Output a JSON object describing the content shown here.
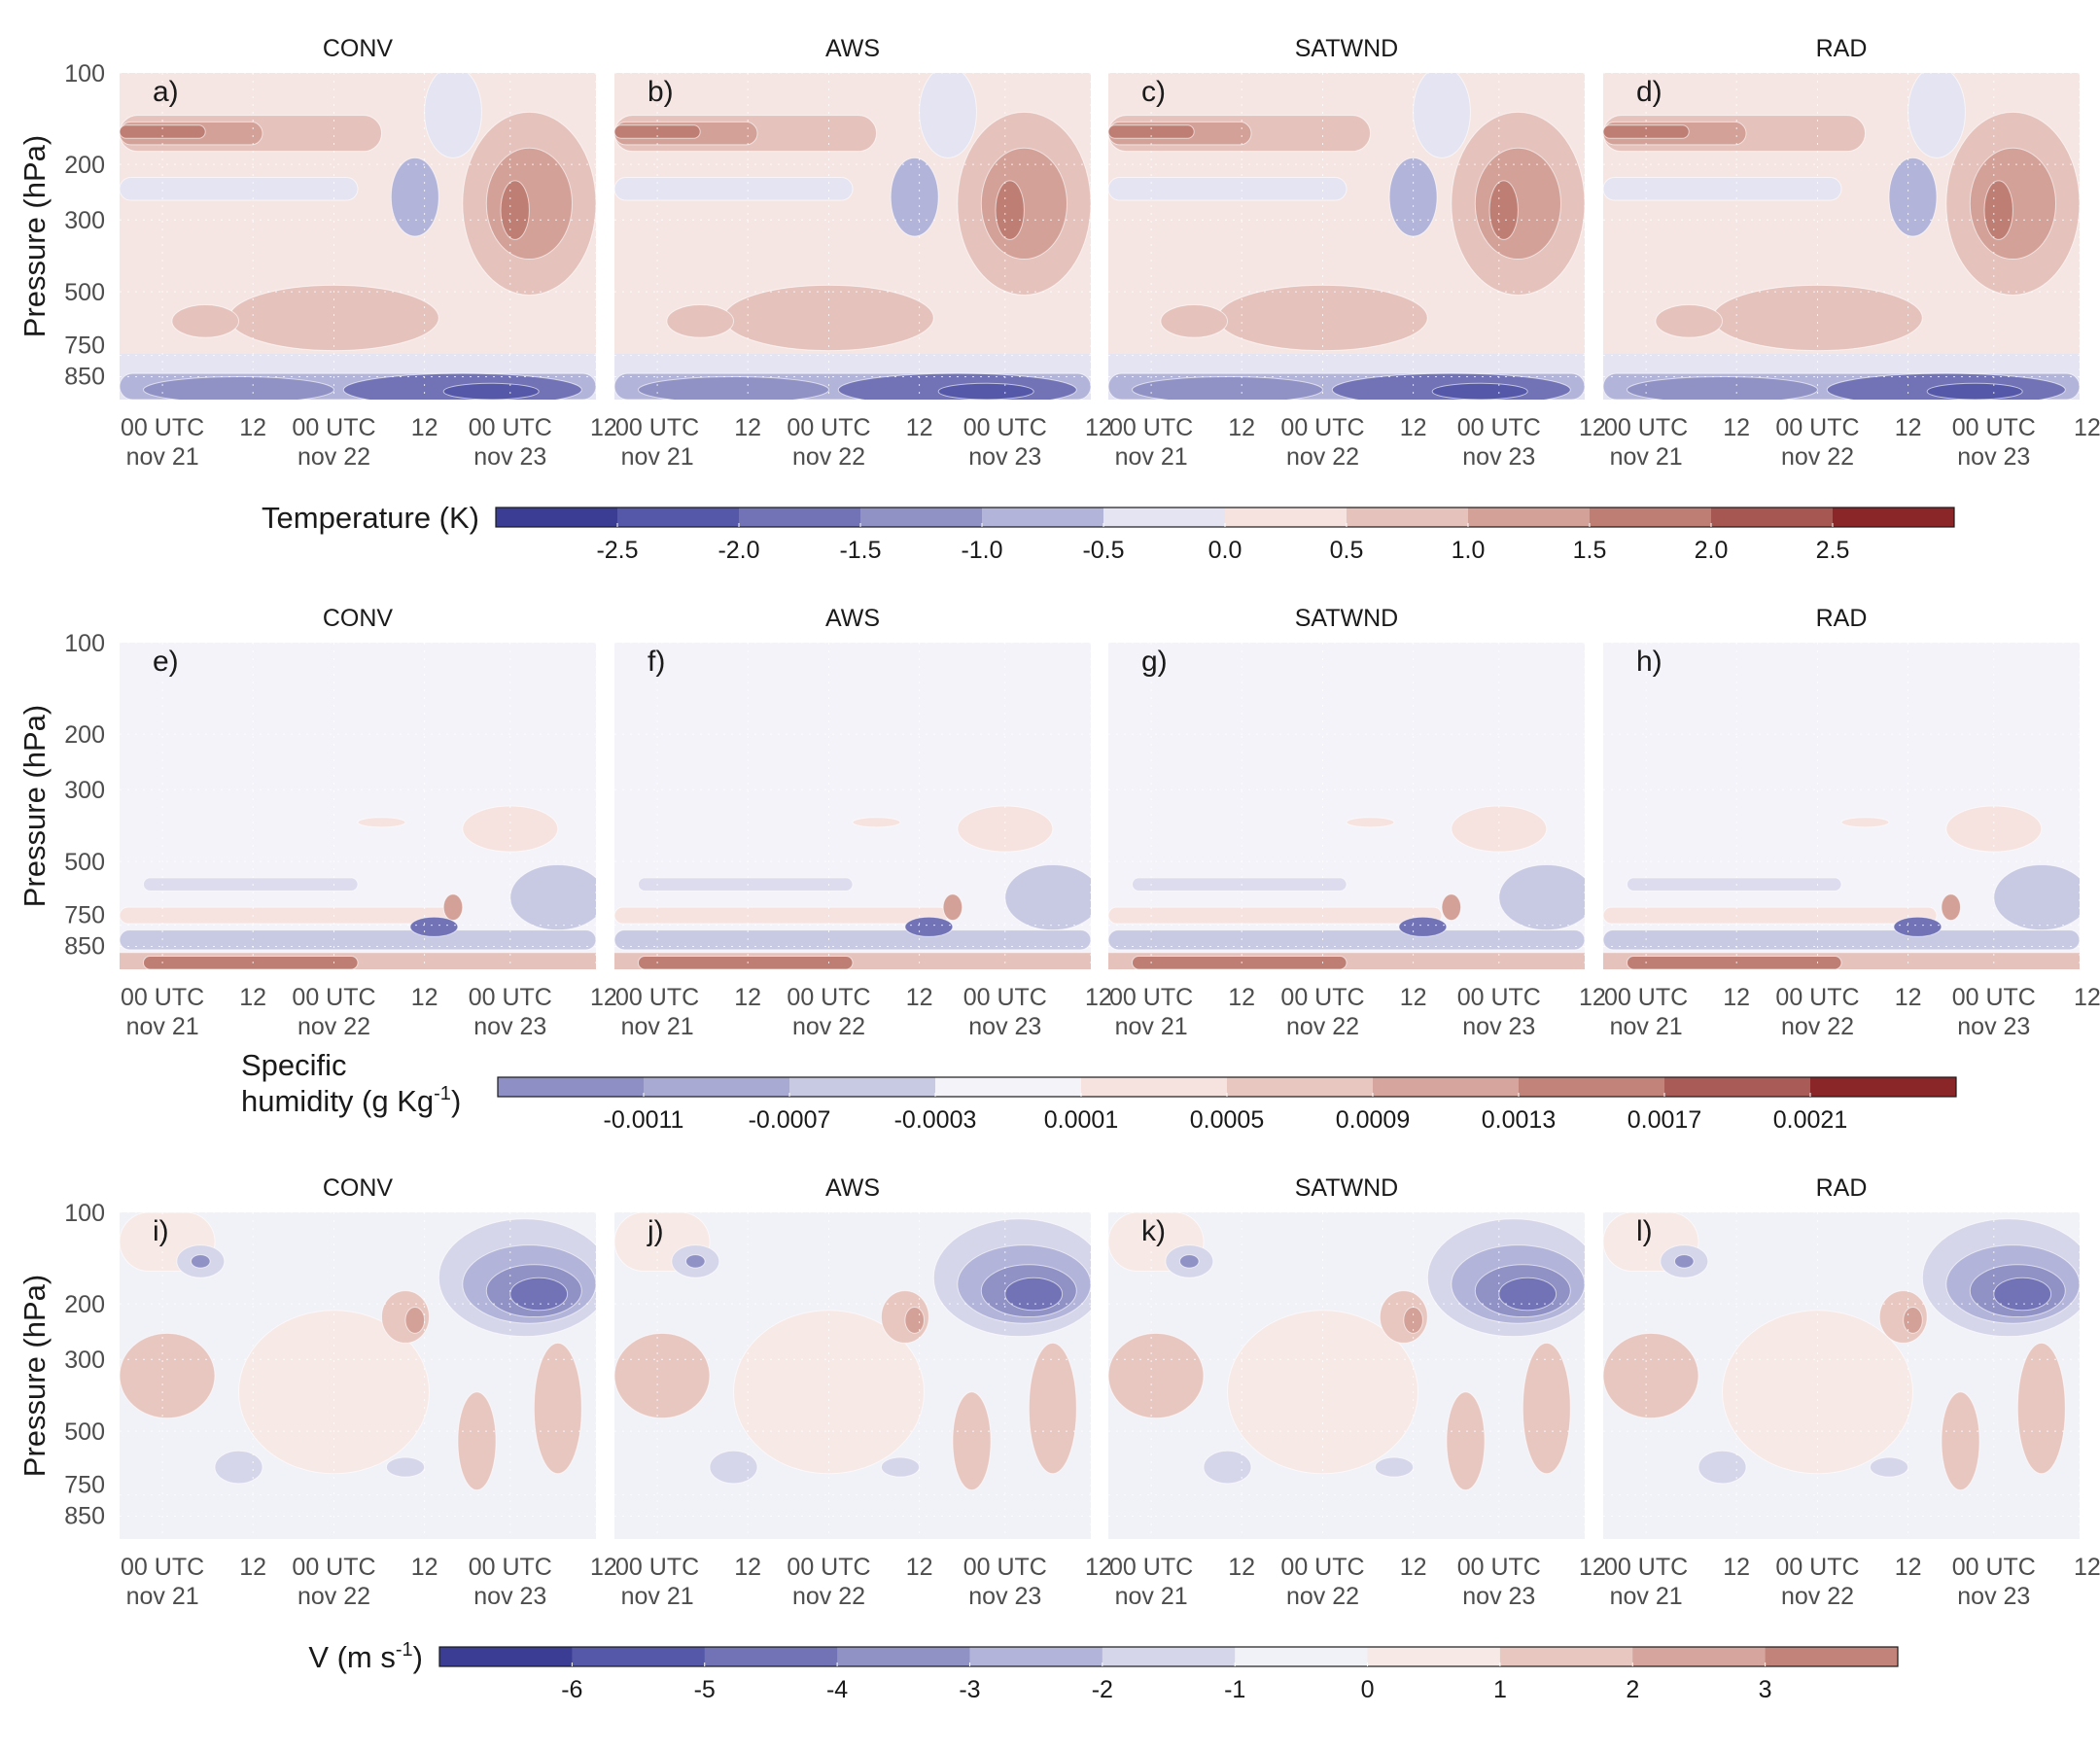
{
  "chart_data": {
    "type": "heatmap",
    "title": "",
    "panel_titles": [
      "CONV",
      "AWS",
      "SATWND",
      "RAD"
    ],
    "x_ticks": [
      {
        "label": "00 UTC",
        "sub": "nov 21"
      },
      {
        "label": "12",
        "sub": ""
      },
      {
        "label": "00 UTC",
        "sub": "nov 22"
      },
      {
        "label": "12",
        "sub": ""
      },
      {
        "label": "00 UTC",
        "sub": "nov 23"
      },
      {
        "label": "12",
        "sub": ""
      }
    ],
    "y_ticks": [
      "100",
      "200",
      "300",
      "500",
      "750",
      "850"
    ],
    "ylabel": "Pressure (hPa)",
    "rows": [
      {
        "variable": "temperature",
        "panel_labels": [
          "a)",
          "b)",
          "c)",
          "d)"
        ],
        "colorbar_label": "Temperature (K)",
        "colorbar_ticks": [
          "-2.5",
          "-2.0",
          "-1.5",
          "-1.0",
          "-0.5",
          "0.0",
          "0.5",
          "1.0",
          "1.5",
          "2.0",
          "2.5"
        ],
        "colorbar_colors": [
          "#3a3d93",
          "#5558a8",
          "#7173b6",
          "#9091c5",
          "#b3b4d9",
          "#e4e4f2",
          "#f6e3e0",
          "#e5c2bc",
          "#d3a198",
          "#bf7e74",
          "#a65752",
          "#8a2528"
        ]
      },
      {
        "variable": "specific_humidity",
        "panel_labels": [
          "e)",
          "f)",
          "g)",
          "h)"
        ],
        "colorbar_label_line1": "Specific",
        "colorbar_label_line2": "humidity (g Kg",
        "colorbar_label_sup": "-1",
        "colorbar_label_end": ")",
        "colorbar_ticks": [
          "-0.0011",
          "-0.0007",
          "-0.0003",
          "0.0001",
          "0.0005",
          "0.0009",
          "0.0013",
          "0.0017",
          "0.0021"
        ],
        "colorbar_colors": [
          "#8e8fc4",
          "#a9aad3",
          "#c8c9e3",
          "#f3f3f9",
          "#f6e3e0",
          "#e8c7c1",
          "#d6a59d",
          "#c2847a",
          "#a95b57",
          "#8a2528"
        ]
      },
      {
        "variable": "meridional_wind",
        "panel_labels": [
          "i)",
          "j)",
          "k)",
          "l)"
        ],
        "colorbar_label": "V (m s",
        "colorbar_label_sup": "-1",
        "colorbar_label_end": ")",
        "colorbar_ticks": [
          "-6",
          "-5",
          "-4",
          "-3",
          "-2",
          "-1",
          "0",
          "1",
          "2",
          "3"
        ],
        "colorbar_colors": [
          "#3a3d93",
          "#5558a8",
          "#7173b6",
          "#9091c5",
          "#b3b4d9",
          "#d6d6ea",
          "#f1f1f8",
          "#f7e9e6",
          "#e8c7c1",
          "#d6a59d",
          "#c2847a"
        ]
      }
    ],
    "legend": "bottom of each row (colorbar)",
    "grid": true
  }
}
